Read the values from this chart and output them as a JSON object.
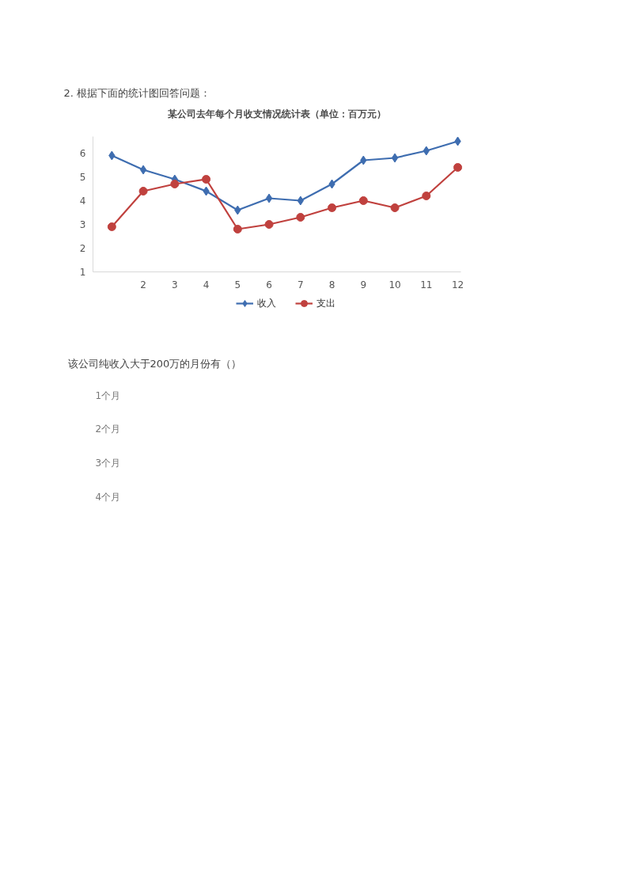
{
  "chart_data": {
    "type": "line",
    "title": "某公司去年每个月收支情况统计表（单位：百万元）",
    "x": [
      1,
      2,
      3,
      4,
      5,
      6,
      7,
      8,
      9,
      10,
      11,
      12
    ],
    "xlim": [
      0.4,
      12.1
    ],
    "xticks": [
      2,
      3,
      4,
      5,
      6,
      7,
      8,
      9,
      10,
      11,
      12
    ],
    "ylim": [
      1,
      6.7
    ],
    "yticks": [
      1,
      2,
      3,
      4,
      5,
      6
    ],
    "legend": "bottom",
    "line_style": "solid",
    "series": [
      {
        "name": "收入",
        "color": "#3e6db0",
        "marker": "diamond",
        "values": [
          5.9,
          5.3,
          4.9,
          4.4,
          3.6,
          4.1,
          4.0,
          4.7,
          5.7,
          5.8,
          6.1,
          6.5
        ]
      },
      {
        "name": "支出",
        "color": "#c0413e",
        "marker": "circle",
        "values": [
          2.9,
          4.4,
          4.7,
          4.9,
          2.8,
          3.0,
          3.3,
          3.7,
          4.0,
          3.7,
          4.2,
          5.4
        ]
      }
    ],
    "annotations": [
      "2. 根据下面的统计图回答问题：",
      "该公司纯收入大于200万的月份有（）",
      "1个月",
      "2个月",
      "3个月",
      "4个月"
    ]
  }
}
